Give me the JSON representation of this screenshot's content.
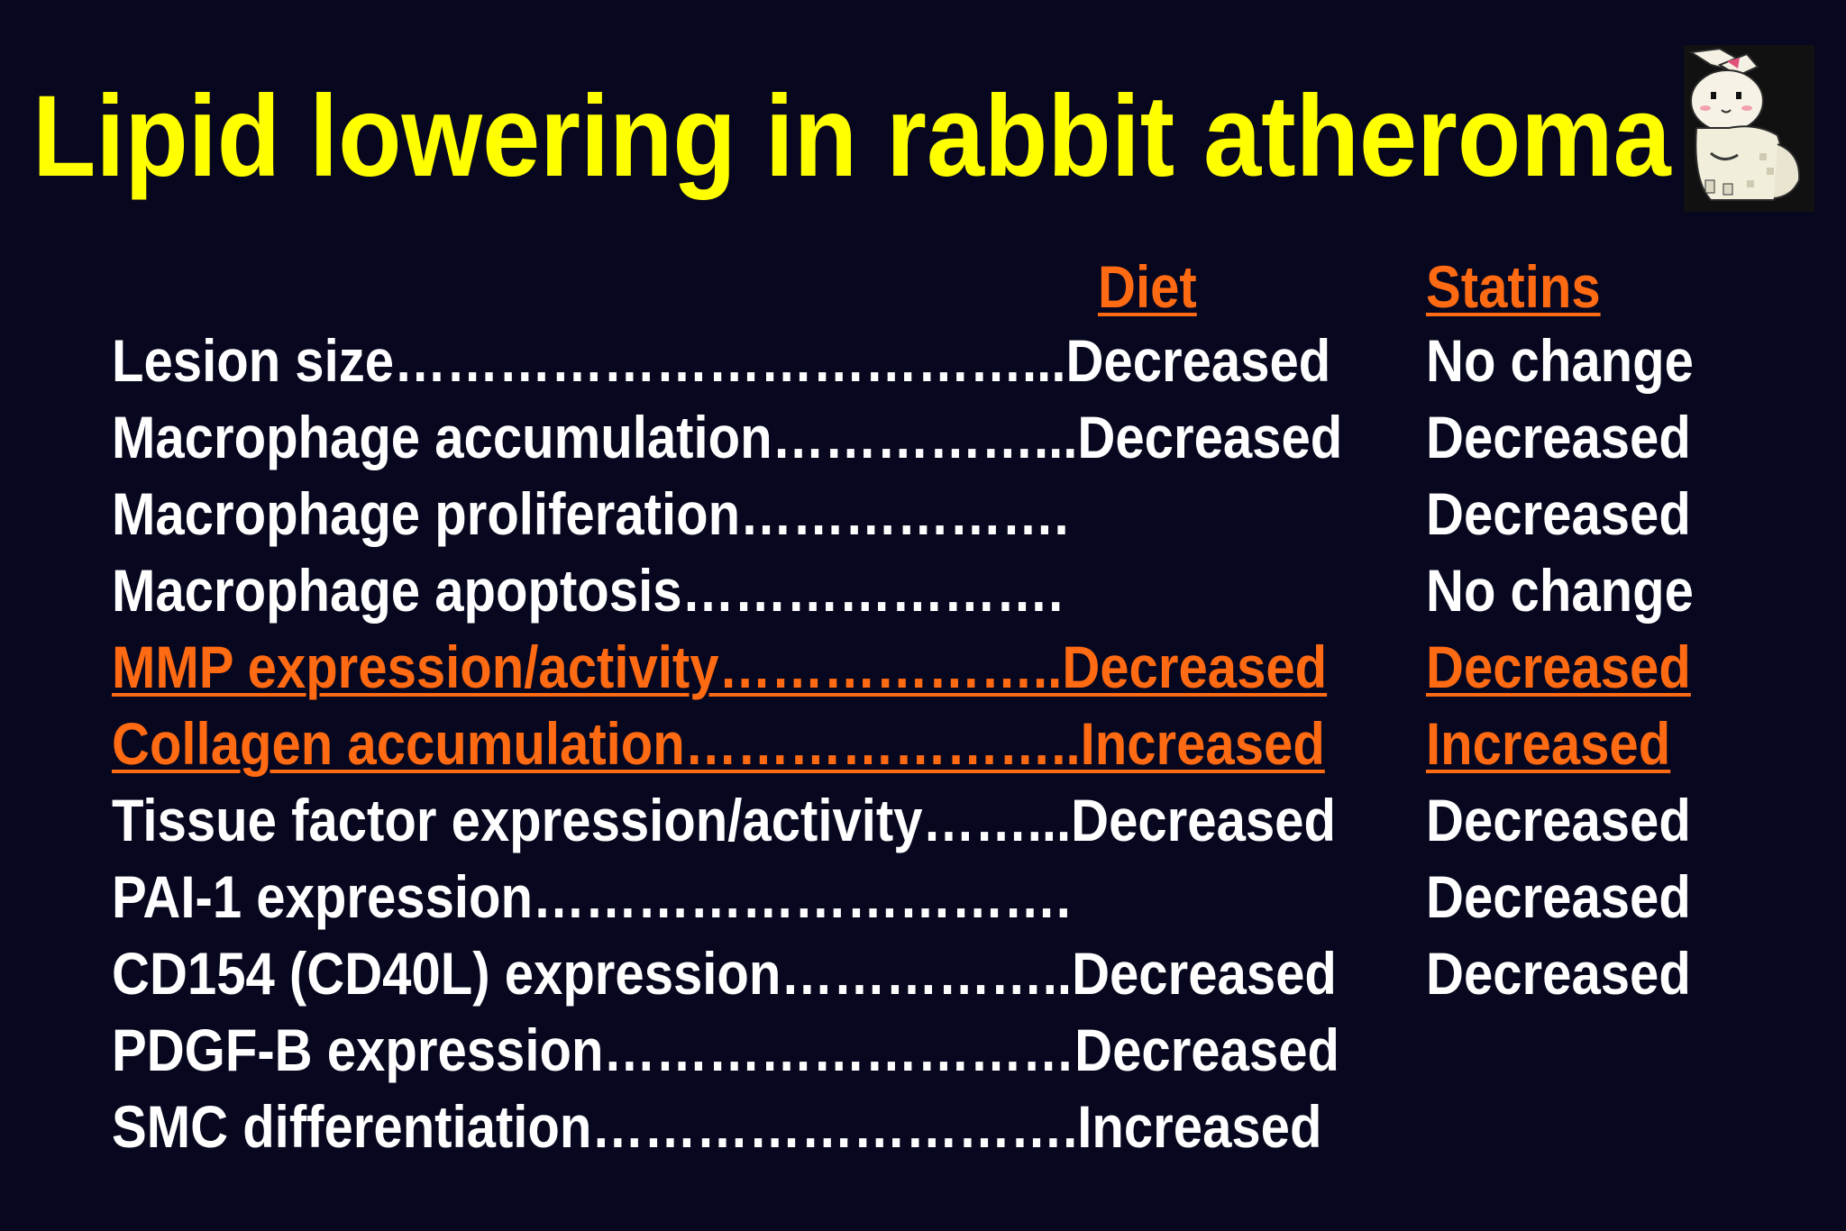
{
  "slide": {
    "title": "Lipid lowering in rabbit atheroma",
    "columns": {
      "diet": "Diet",
      "statins": "Statins"
    },
    "rows": [
      {
        "item": "Lesion size………………………………...Decreased",
        "statin": "No change",
        "highlight": false
      },
      {
        "item": "Macrophage accumulation……………...Decreased",
        "statin": "Decreased",
        "highlight": false
      },
      {
        "item": "Macrophage proliferation……………….",
        "statin": "Decreased",
        "highlight": false
      },
      {
        "item": "Macrophage apoptosis………………….",
        "statin": "No change",
        "highlight": false
      },
      {
        "item": "MMP expression/activity………………..Decreased",
        "statin": "Decreased",
        "highlight": true
      },
      {
        "item": "Collagen accumulation…………………..Increased",
        "statin": "Increased",
        "highlight": true
      },
      {
        "item": "Tissue factor expression/activity……...Decreased",
        "statin": "Decreased",
        "highlight": false
      },
      {
        "item": "PAI-1 expression………………………….",
        "statin": "Decreased",
        "highlight": false
      },
      {
        "item": "CD154 (CD40L) expression……………..Decreased",
        "statin": "Decreased",
        "highlight": false
      },
      {
        "item": "PDGF-B expression………………………Decreased",
        "statin": "",
        "highlight": false
      },
      {
        "item": "SMC differentiation……………………….Increased",
        "statin": "",
        "highlight": false
      }
    ],
    "colors": {
      "background": "#07081f",
      "title": "#ffff00",
      "highlight": "#ff6a12",
      "text": "#ffffff"
    },
    "image": "rabbit-cartoon-icon"
  }
}
